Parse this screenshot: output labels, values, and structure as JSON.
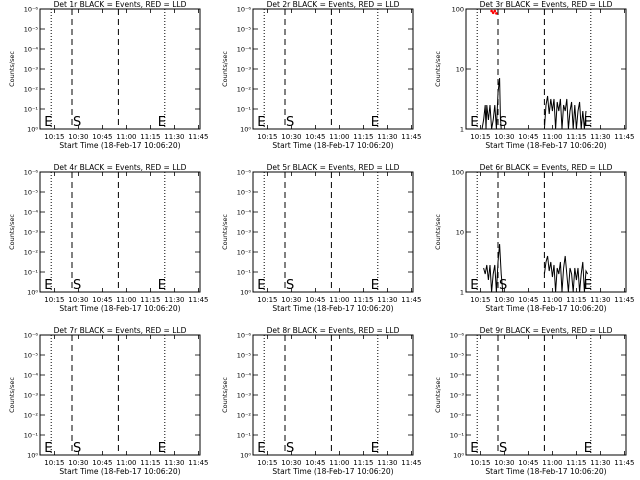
{
  "figure": {
    "background": "#ffffff",
    "event_color": "#000000",
    "lld_color": "#ff0000"
  },
  "chart_data": [
    {
      "type": "line",
      "title": "Det 1r BLACK = Events, RED = LLD",
      "xlabel": "Start Time (18-Feb-17 10:06:20)",
      "ylabel": "Counts/sec",
      "x_tick_labels": [
        "10:15",
        "10:30",
        "10:45",
        "11:00",
        "11:15",
        "11:30",
        "11:45"
      ],
      "x_ticks_min": [
        9,
        24,
        39,
        54,
        69,
        84,
        99
      ],
      "xlim": [
        0,
        100
      ],
      "y_scale": "log",
      "y_tick_labels": [
        "10⁰",
        "10⁻¹",
        "10⁻²",
        "10⁻³",
        "10⁻⁴",
        "10⁻⁵",
        "10⁻⁶"
      ],
      "ylim": [
        0,
        6
      ],
      "markers": {
        "E_min": [
          7,
          78
        ],
        "S_min": [
          20
        ],
        "dashed_min": [
          20,
          49
        ]
      },
      "series": [
        {
          "style": "line",
          "color": "#000000",
          "points": []
        }
      ]
    },
    {
      "type": "line",
      "title": "Det 2r BLACK = Events, RED = LLD",
      "xlabel": "Start Time (18-Feb-17 10:06:20)",
      "ylabel": "Counts/sec",
      "x_tick_labels": [
        "10:15",
        "10:30",
        "10:45",
        "11:00",
        "11:15",
        "11:30",
        "11:45"
      ],
      "x_ticks_min": [
        9,
        24,
        39,
        54,
        69,
        84,
        99
      ],
      "xlim": [
        0,
        100
      ],
      "y_scale": "log",
      "y_tick_labels": [
        "10⁰",
        "10⁻¹",
        "10⁻²",
        "10⁻³",
        "10⁻⁴",
        "10⁻⁵",
        "10⁻⁶"
      ],
      "ylim": [
        0,
        6
      ],
      "markers": {
        "E_min": [
          7,
          78
        ],
        "S_min": [
          20
        ],
        "dashed_min": [
          20,
          49
        ]
      },
      "series": [
        {
          "style": "line",
          "color": "#000000",
          "points": []
        }
      ]
    },
    {
      "type": "line",
      "title": "Det 3r BLACK = Events, RED = LLD",
      "xlabel": "Start Time (18-Feb-17 10:06:20)",
      "ylabel": "Counts/sec",
      "x_tick_labels": [
        "10:15",
        "10:30",
        "10:45",
        "11:00",
        "11:15",
        "11:30",
        "11:45"
      ],
      "x_ticks_min": [
        9,
        24,
        39,
        54,
        69,
        84,
        99
      ],
      "xlim": [
        0,
        100
      ],
      "y_scale": "log",
      "y_tick_labels": [
        "1",
        "10",
        "100"
      ],
      "ylim": [
        0,
        2
      ],
      "markers": {
        "E_min": [
          7,
          78
        ],
        "S_min": [
          20
        ],
        "dashed_min": [
          20,
          49
        ]
      },
      "series": [
        {
          "style": "line",
          "color": "#000000",
          "points": [
            [
              10,
              0.0
            ],
            [
              11,
              0.15
            ],
            [
              12,
              0.4
            ],
            [
              12.5,
              0.0
            ],
            [
              13,
              0.4
            ],
            [
              14,
              0.15
            ],
            [
              15,
              0.4
            ],
            [
              16,
              0.0
            ],
            [
              17,
              0.15
            ],
            [
              18,
              0.4
            ],
            [
              19,
              0.0
            ],
            [
              20,
              0.6
            ],
            [
              21,
              0.85
            ],
            [
              21.5,
              0.2
            ],
            [
              22,
              0.0
            ]
          ]
        },
        {
          "style": "line",
          "color": "#000000",
          "points": [
            [
              49,
              0.0
            ],
            [
              50,
              0.4
            ],
            [
              51,
              0.55
            ],
            [
              52,
              0.25
            ],
            [
              53,
              0.5
            ],
            [
              54,
              0.3
            ],
            [
              55,
              0.5
            ],
            [
              56,
              0.0
            ],
            [
              57,
              0.45
            ],
            [
              58,
              0.3
            ],
            [
              59,
              0.5
            ],
            [
              60,
              0.0
            ],
            [
              61,
              0.4
            ],
            [
              62,
              0.3
            ],
            [
              63,
              0.5
            ],
            [
              64,
              0.0
            ],
            [
              65,
              0.3
            ],
            [
              66,
              0.45
            ],
            [
              67,
              0.0
            ],
            [
              68,
              0.4
            ],
            [
              69,
              0.0
            ],
            [
              70,
              0.3
            ],
            [
              71,
              0.45
            ],
            [
              72,
              0.0
            ],
            [
              73,
              0.3
            ],
            [
              74,
              0.0
            ],
            [
              75,
              0.3
            ]
          ]
        },
        {
          "style": "dots",
          "color": "#ff0000",
          "points": [
            [
              16,
              2.0
            ],
            [
              17,
              1.97
            ],
            [
              18,
              2.0
            ],
            [
              19,
              1.96
            ]
          ]
        }
      ]
    },
    {
      "type": "line",
      "title": "Det 4r BLACK = Events, RED = LLD",
      "xlabel": "Start Time (18-Feb-17 10:06:20)",
      "ylabel": "Counts/sec",
      "x_tick_labels": [
        "10:15",
        "10:30",
        "10:45",
        "11:00",
        "11:15",
        "11:30",
        "11:45"
      ],
      "x_ticks_min": [
        9,
        24,
        39,
        54,
        69,
        84,
        99
      ],
      "xlim": [
        0,
        100
      ],
      "y_scale": "log",
      "y_tick_labels": [
        "10⁰",
        "10⁻¹",
        "10⁻²",
        "10⁻³",
        "10⁻⁴",
        "10⁻⁵",
        "10⁻⁶"
      ],
      "ylim": [
        0,
        6
      ],
      "markers": {
        "E_min": [
          7,
          78
        ],
        "S_min": [
          20
        ],
        "dashed_min": [
          20,
          49
        ]
      },
      "series": [
        {
          "style": "line",
          "color": "#000000",
          "points": []
        }
      ]
    },
    {
      "type": "line",
      "title": "Det 5r BLACK = Events, RED = LLD",
      "xlabel": "Start Time (18-Feb-17 10:06:20)",
      "ylabel": "Counts/sec",
      "x_tick_labels": [
        "10:15",
        "10:30",
        "10:45",
        "11:00",
        "11:15",
        "11:30",
        "11:45"
      ],
      "x_ticks_min": [
        9,
        24,
        39,
        54,
        69,
        84,
        99
      ],
      "xlim": [
        0,
        100
      ],
      "y_scale": "log",
      "y_tick_labels": [
        "10⁰",
        "10⁻¹",
        "10⁻²",
        "10⁻³",
        "10⁻⁴",
        "10⁻⁵",
        "10⁻⁶"
      ],
      "ylim": [
        0,
        6
      ],
      "markers": {
        "E_min": [
          7,
          78
        ],
        "S_min": [
          20
        ],
        "dashed_min": [
          20,
          49
        ]
      },
      "series": [
        {
          "style": "line",
          "color": "#000000",
          "points": []
        }
      ]
    },
    {
      "type": "line",
      "title": "Det 6r BLACK = Events, RED = LLD",
      "xlabel": "Start Time (18-Feb-17 10:06:20)",
      "ylabel": "Counts/sec",
      "x_tick_labels": [
        "10:15",
        "10:30",
        "10:45",
        "11:00",
        "11:15",
        "11:30",
        "11:45"
      ],
      "x_ticks_min": [
        9,
        24,
        39,
        54,
        69,
        84,
        99
      ],
      "xlim": [
        0,
        100
      ],
      "y_scale": "log",
      "y_tick_labels": [
        "1",
        "10",
        "100"
      ],
      "ylim": [
        0,
        2
      ],
      "markers": {
        "E_min": [
          7,
          78
        ],
        "S_min": [
          20
        ],
        "dashed_min": [
          20,
          49
        ]
      },
      "series": [
        {
          "style": "line",
          "color": "#000000",
          "points": [
            [
              11,
              0.4
            ],
            [
              12,
              0.3
            ],
            [
              13,
              0.45
            ],
            [
              14,
              0.2
            ],
            [
              15,
              0.45
            ],
            [
              16,
              0.0
            ],
            [
              17,
              0.3
            ],
            [
              18,
              0.45
            ],
            [
              19,
              0.0
            ],
            [
              20,
              0.5
            ],
            [
              21,
              0.8
            ],
            [
              22,
              0.3
            ],
            [
              23,
              0.0
            ]
          ]
        },
        {
          "style": "line",
          "color": "#000000",
          "points": [
            [
              49,
              0.3
            ],
            [
              50,
              0.5
            ],
            [
              51,
              0.6
            ],
            [
              52,
              0.35
            ],
            [
              53,
              0.5
            ],
            [
              54,
              0.25
            ],
            [
              55,
              0.45
            ],
            [
              56,
              0.0
            ],
            [
              57,
              0.4
            ],
            [
              58,
              0.3
            ],
            [
              59,
              0.5
            ],
            [
              60,
              0.0
            ],
            [
              61,
              0.4
            ],
            [
              62,
              0.6
            ],
            [
              63,
              0.3
            ],
            [
              64,
              0.0
            ],
            [
              65,
              0.4
            ],
            [
              66,
              0.3
            ],
            [
              67,
              0.0
            ],
            [
              68,
              0.4
            ],
            [
              69,
              0.2
            ],
            [
              70,
              0.4
            ],
            [
              71,
              0.0
            ],
            [
              72,
              0.3
            ],
            [
              73,
              0.5
            ],
            [
              74,
              0.0
            ],
            [
              75,
              0.35
            ],
            [
              76,
              0.3
            ]
          ]
        }
      ]
    },
    {
      "type": "line",
      "title": "Det 7r BLACK = Events, RED = LLD",
      "xlabel": "Start Time (18-Feb-17 10:06:20)",
      "ylabel": "Counts/sec",
      "x_tick_labels": [
        "10:15",
        "10:30",
        "10:45",
        "11:00",
        "11:15",
        "11:30",
        "11:45"
      ],
      "x_ticks_min": [
        9,
        24,
        39,
        54,
        69,
        84,
        99
      ],
      "xlim": [
        0,
        100
      ],
      "y_scale": "log",
      "y_tick_labels": [
        "10⁰",
        "10⁻¹",
        "10⁻²",
        "10⁻³",
        "10⁻⁴",
        "10⁻⁵",
        "10⁻⁶"
      ],
      "ylim": [
        0,
        6
      ],
      "markers": {
        "E_min": [
          7,
          78
        ],
        "S_min": [
          20
        ],
        "dashed_min": [
          20,
          49
        ]
      },
      "series": [
        {
          "style": "line",
          "color": "#000000",
          "points": []
        }
      ]
    },
    {
      "type": "line",
      "title": "Det 8r BLACK = Events, RED = LLD",
      "xlabel": "Start Time (18-Feb-17 10:06:20)",
      "ylabel": "Counts/sec",
      "x_tick_labels": [
        "10:15",
        "10:30",
        "10:45",
        "11:00",
        "11:15",
        "11:30",
        "11:45"
      ],
      "x_ticks_min": [
        9,
        24,
        39,
        54,
        69,
        84,
        99
      ],
      "xlim": [
        0,
        100
      ],
      "y_scale": "log",
      "y_tick_labels": [
        "10⁰",
        "10⁻¹",
        "10⁻²",
        "10⁻³",
        "10⁻⁴",
        "10⁻⁵",
        "10⁻⁶"
      ],
      "ylim": [
        0,
        6
      ],
      "markers": {
        "E_min": [
          7,
          78
        ],
        "S_min": [
          20
        ],
        "dashed_min": [
          20,
          49
        ]
      },
      "series": [
        {
          "style": "line",
          "color": "#000000",
          "points": []
        }
      ]
    },
    {
      "type": "line",
      "title": "Det 9r BLACK = Events, RED = LLD",
      "xlabel": "Start Time (18-Feb-17 10:06:20)",
      "ylabel": "Counts/sec",
      "x_tick_labels": [
        "10:15",
        "10:30",
        "10:45",
        "11:00",
        "11:15",
        "11:30",
        "11:45"
      ],
      "x_ticks_min": [
        9,
        24,
        39,
        54,
        69,
        84,
        99
      ],
      "xlim": [
        0,
        100
      ],
      "y_scale": "log",
      "y_tick_labels": [
        "10⁰",
        "10⁻¹",
        "10⁻²",
        "10⁻³",
        "10⁻⁴",
        "10⁻⁵",
        "10⁻⁶"
      ],
      "ylim": [
        0,
        6
      ],
      "markers": {
        "E_min": [
          7,
          78
        ],
        "S_min": [
          20
        ],
        "dashed_min": [
          20,
          49
        ]
      },
      "series": [
        {
          "style": "line",
          "color": "#000000",
          "points": []
        }
      ]
    }
  ]
}
